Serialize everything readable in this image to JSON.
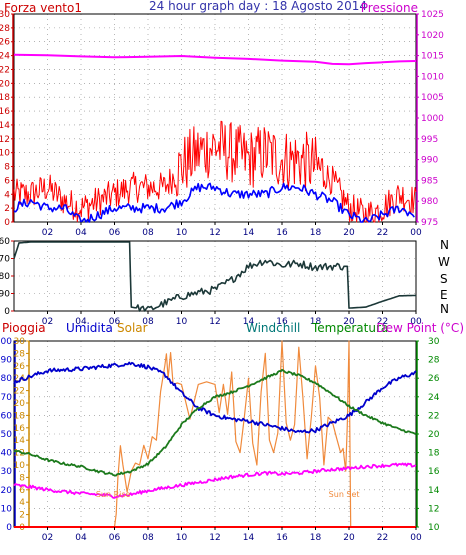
{
  "header": {
    "title": "24 hour graph day : 18 Agosto 2014",
    "left_label": "Forza vento1",
    "right_label": "Pressione"
  },
  "direction_labels": [
    "N",
    "W",
    "S",
    "E",
    "N"
  ],
  "bottom_legend": {
    "pioggia": "Pioggia",
    "umidita": "Umidita",
    "solar": "Solar",
    "windchill": "Windchill",
    "temperatura": "Temperatura",
    "dewpoint": "Dew Point (°C)"
  },
  "annotations": {
    "sunrise": "Sun Rise",
    "sunset": "Sun Set"
  },
  "colors": {
    "wind": "#ff0000",
    "gust_avg": "#0000ff",
    "pressure": "#ff00ff",
    "direction": "#1c3838",
    "humidity": "#0000cc",
    "solar": "#f08a3c",
    "temperature": "#1c7a1c",
    "dewpoint": "#ff00ff",
    "rain": "#ff0000",
    "axis_red": "#cc0000",
    "axis_purple": "#cc00cc",
    "axis_blue": "#0000cc",
    "axis_green": "#008800",
    "axis_orange": "#cc8800",
    "axis_teal": "#007777"
  },
  "chart_data": [
    {
      "type": "line",
      "title": "24 hour graph day : 18 Agosto 2014",
      "xticks": [
        "02",
        "04",
        "06",
        "08",
        "10",
        "12",
        "14",
        "16",
        "18",
        "20",
        "22",
        "00"
      ],
      "ylim_left": [
        0,
        30
      ],
      "yticks_left": [
        0,
        2,
        4,
        6,
        8,
        10,
        12,
        14,
        16,
        18,
        20,
        22,
        24,
        26,
        28,
        30
      ],
      "ylim_right": [
        975,
        1025
      ],
      "yticks_right": [
        975,
        980,
        985,
        990,
        995,
        1000,
        1005,
        1010,
        1015,
        1020,
        1025
      ],
      "series": [
        {
          "name": "Forza vento1",
          "axis": "left",
          "x": [
            0,
            1,
            2,
            3,
            4,
            5,
            6,
            7,
            8,
            9,
            10,
            11,
            12,
            13,
            14,
            15,
            16,
            17,
            18,
            19,
            20,
            21,
            22,
            23,
            24
          ],
          "values": [
            4,
            4,
            5,
            3,
            2,
            3,
            4,
            5,
            5,
            5,
            8,
            10,
            11,
            10,
            9,
            10,
            9,
            9,
            8,
            6,
            2,
            1,
            2,
            4,
            3
          ]
        },
        {
          "axis": "left",
          "x": [
            0,
            1,
            2,
            3,
            4,
            5,
            6,
            7,
            8,
            9,
            10,
            11,
            12,
            13,
            14,
            15,
            16,
            17,
            18,
            19,
            20,
            21,
            22,
            23,
            24
          ],
          "values": [
            2,
            3,
            2,
            2,
            0,
            1,
            2,
            2,
            2,
            2,
            3,
            5,
            5,
            4,
            4,
            4,
            5,
            5,
            4,
            3,
            1,
            0,
            1,
            2,
            1
          ]
        },
        {
          "name": "Pressione",
          "axis": "right",
          "x": [
            0,
            2,
            4,
            6,
            8,
            10,
            12,
            14,
            16,
            18,
            19,
            20,
            21,
            22,
            23,
            24
          ],
          "values": [
            1015.2,
            1015.1,
            1014.8,
            1014.6,
            1014.7,
            1014.9,
            1014.5,
            1014.2,
            1013.8,
            1013.5,
            1013.0,
            1012.9,
            1013.2,
            1013.4,
            1013.6,
            1013.7
          ]
        }
      ]
    },
    {
      "type": "line",
      "ylim": [
        0,
        360
      ],
      "yticks": [
        0,
        90,
        180,
        270,
        360
      ],
      "xticks": [
        "02",
        "04",
        "06",
        "08",
        "10",
        "12",
        "14",
        "16",
        "18",
        "20",
        "22",
        "00"
      ],
      "series": [
        {
          "x": [
            0,
            0.3,
            1,
            3,
            5,
            6,
            6.9,
            7,
            8,
            9,
            10,
            11,
            12,
            13,
            14,
            15,
            16,
            17,
            18,
            19,
            19.9,
            20,
            21,
            22,
            23,
            24
          ],
          "values": [
            270,
            350,
            355,
            355,
            355,
            355,
            355,
            20,
            5,
            40,
            75,
            95,
            110,
            160,
            230,
            260,
            235,
            245,
            225,
            230,
            230,
            15,
            20,
            50,
            78,
            80
          ]
        }
      ]
    },
    {
      "type": "line",
      "xticks": [
        "02",
        "04",
        "06",
        "08",
        "10",
        "12",
        "14",
        "16",
        "18",
        "20",
        "22",
        "00"
      ],
      "axes": {
        "pioggia_umidita": {
          "ylim": [
            0,
            100
          ],
          "ticks": [
            0,
            10,
            20,
            30,
            40,
            50,
            60,
            70,
            80,
            90,
            100
          ]
        },
        "solar": {
          "ylim": [
            0,
            30
          ],
          "ticks": [
            0,
            2,
            4,
            6,
            8,
            10,
            12,
            14,
            16,
            18,
            20,
            22,
            24,
            26,
            28,
            30
          ]
        },
        "temperatura": {
          "ylim": [
            10,
            30
          ],
          "ticks": [
            10,
            12,
            14,
            16,
            18,
            20,
            22,
            24,
            26,
            28,
            30
          ]
        }
      },
      "series": [
        {
          "name": "Umidita",
          "axis": "pioggia_umidita",
          "x": [
            0,
            2,
            4,
            6,
            7,
            8,
            9,
            10,
            11,
            12,
            13,
            14,
            15,
            16,
            17,
            18,
            19,
            20,
            21,
            22,
            23,
            24
          ],
          "values": [
            78,
            84,
            85,
            87,
            88,
            86,
            82,
            72,
            64,
            60,
            58,
            57,
            55,
            53,
            51,
            52,
            56,
            60,
            67,
            75,
            80,
            83
          ]
        },
        {
          "name": "Temperatura",
          "axis": "temperatura",
          "x": [
            0,
            1,
            2,
            3,
            4,
            5,
            6,
            7,
            8,
            9,
            10,
            11,
            12,
            13,
            14,
            15,
            16,
            17,
            18,
            19,
            20,
            21,
            22,
            23,
            24
          ],
          "values": [
            18.2,
            17.8,
            17.2,
            16.8,
            16.5,
            16.0,
            15.6,
            16.0,
            16.8,
            18.5,
            21.0,
            22.8,
            24.0,
            24.5,
            25.2,
            26.0,
            26.8,
            26.3,
            25.5,
            24.3,
            23.0,
            22.0,
            21.2,
            20.5,
            20.0
          ]
        },
        {
          "name": "Dew Point (°C)",
          "axis": "temperatura",
          "x": [
            0,
            1,
            2,
            3,
            4,
            5,
            6,
            7,
            8,
            9,
            10,
            11,
            12,
            13,
            14,
            15,
            16,
            17,
            18,
            19,
            20,
            21,
            22,
            23,
            24
          ],
          "values": [
            14.5,
            14.3,
            14.0,
            13.8,
            13.6,
            13.5,
            13.3,
            13.5,
            13.9,
            14.2,
            14.5,
            14.8,
            15.1,
            15.4,
            15.6,
            15.8,
            15.7,
            15.8,
            16.0,
            16.2,
            16.3,
            16.5,
            16.6,
            16.7,
            16.6
          ]
        },
        {
          "name": "Solar",
          "axis": "solar",
          "x": [
            0,
            6,
            6.2,
            6.5,
            7,
            7.5,
            8,
            8.5,
            9,
            9.2,
            9.5,
            10,
            11,
            12,
            12.5,
            13,
            13.5,
            14,
            14.5,
            15,
            15.5,
            16,
            16.5,
            17,
            17.5,
            18,
            18.5,
            19,
            19.5,
            19.8,
            20,
            20.1,
            24
          ],
          "values": [
            0,
            0,
            8,
            10,
            9,
            10,
            11,
            14,
            26,
            24,
            23,
            23,
            23,
            23,
            23,
            25,
            12,
            24,
            10,
            28,
            12,
            30,
            14,
            29,
            11,
            26,
            10,
            17,
            12,
            9,
            30,
            0,
            0
          ]
        },
        {
          "name": "Pioggia",
          "axis": "pioggia_umidita",
          "x": [
            0,
            24
          ],
          "values": [
            0,
            0
          ]
        }
      ],
      "annotations": [
        {
          "text": "Sun Rise",
          "x": 6.2
        },
        {
          "text": "Sun Set",
          "x": 20.1
        }
      ]
    }
  ]
}
